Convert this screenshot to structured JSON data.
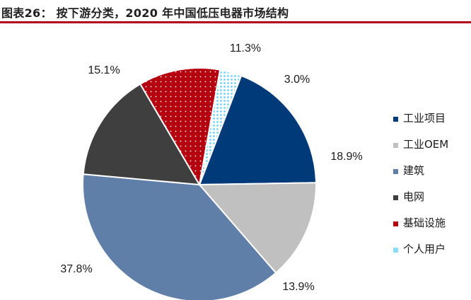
{
  "header": {
    "title": "图表26：   按下游分类，2020 年中国低压电器市场结构"
  },
  "chart_data": {
    "type": "pie",
    "title": "",
    "start_angle_deg": 21,
    "direction": "clockwise",
    "legend_position": "right",
    "slices": [
      {
        "name": "工业项目",
        "value": 18.9,
        "label": "18.9%",
        "color": "#003a78",
        "pattern": ""
      },
      {
        "name": "工业OEM",
        "value": 13.9,
        "label": "13.9%",
        "color": "#c0c0c0",
        "pattern": ""
      },
      {
        "name": "建筑",
        "value": 37.8,
        "label": "37.8%",
        "color": "#5f7fa8",
        "pattern": ""
      },
      {
        "name": "电网",
        "value": 15.1,
        "label": "15.1%",
        "color": "#3f3f3f",
        "pattern": ""
      },
      {
        "name": "基础设施",
        "value": 11.3,
        "label": "11.3%",
        "color": "#b5000f",
        "pattern": "dots"
      },
      {
        "name": "个人用户",
        "value": 3.0,
        "label": "3.0%",
        "color": "#c6e9fb",
        "pattern": "dots"
      }
    ]
  }
}
